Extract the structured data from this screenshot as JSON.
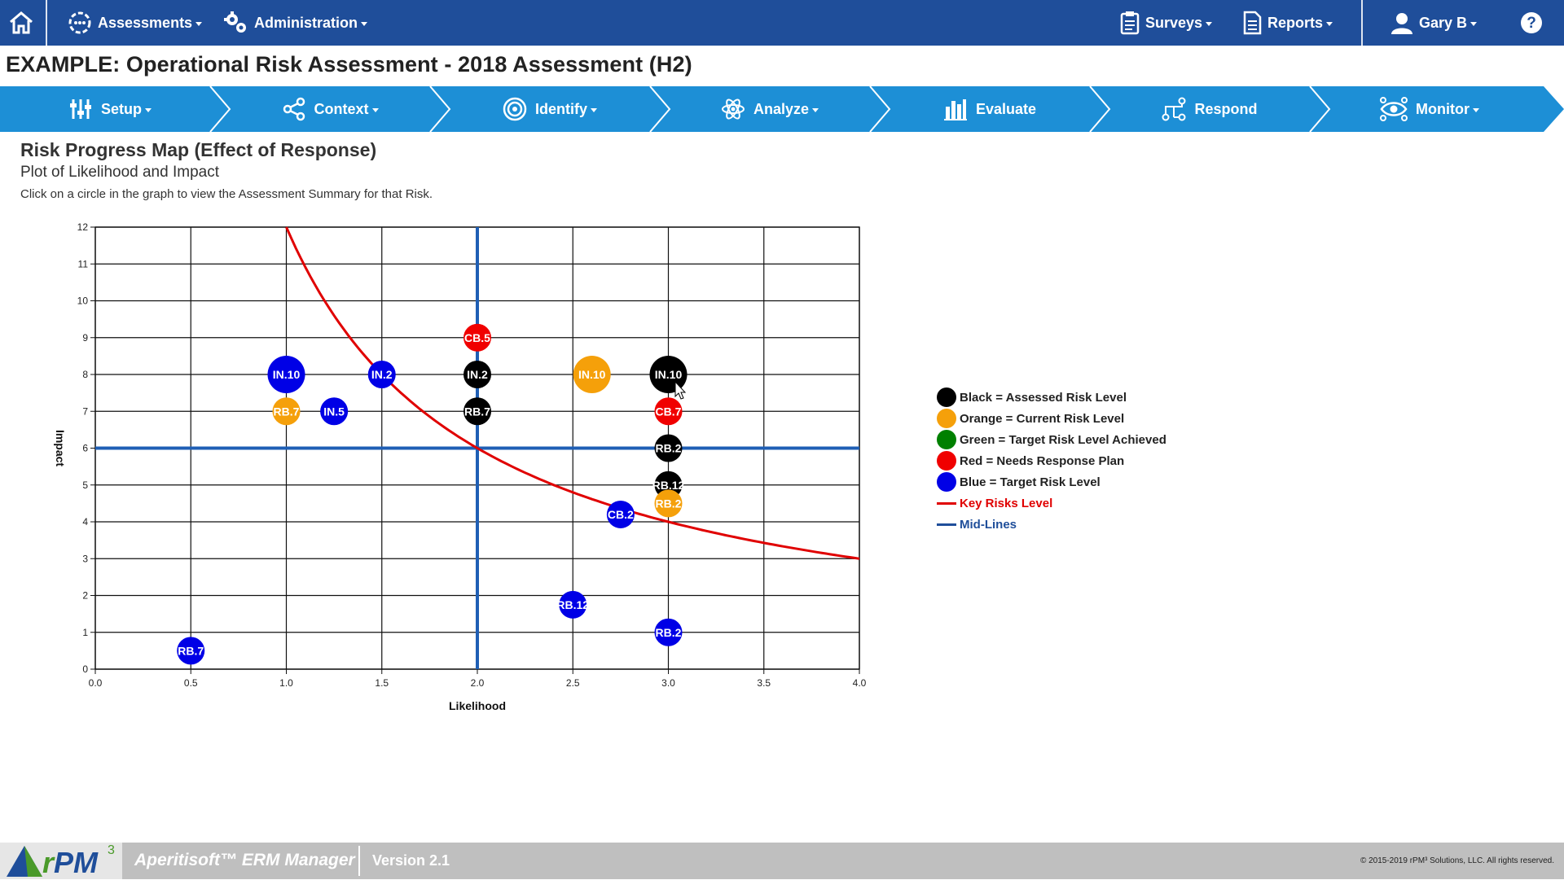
{
  "topnav": {
    "assessments": "Assessments",
    "administration": "Administration",
    "surveys": "Surveys",
    "reports": "Reports",
    "user": "Gary B"
  },
  "page_title": "EXAMPLE: Operational Risk Assessment - 2018 Assessment (H2)",
  "steps": [
    {
      "label": "Setup",
      "icon": "sliders-icon",
      "dropdown": true
    },
    {
      "label": "Context",
      "icon": "share-icon",
      "dropdown": true
    },
    {
      "label": "Identify",
      "icon": "target-icon",
      "dropdown": true
    },
    {
      "label": "Analyze",
      "icon": "atom-icon",
      "dropdown": true
    },
    {
      "label": "Evaluate",
      "icon": "bar-chart-icon",
      "dropdown": false
    },
    {
      "label": "Respond",
      "icon": "flow-icon",
      "dropdown": false
    },
    {
      "label": "Monitor",
      "icon": "eye-icon",
      "dropdown": true
    }
  ],
  "heading": {
    "title": "Risk Progress Map (Effect of Response)",
    "subtitle": "Plot of Likelihood and Impact",
    "note": "Click on a circle in the graph to view the Assessment Summary for that Risk."
  },
  "chart_data": {
    "type": "scatter",
    "xlabel": "Likelihood",
    "ylabel": "Impact",
    "xlim": [
      0,
      4
    ],
    "ylim": [
      0,
      12
    ],
    "x_ticks": [
      "0.0",
      "0.5",
      "1.0",
      "1.5",
      "2.0",
      "2.5",
      "3.0",
      "3.5",
      "4.0"
    ],
    "y_ticks": [
      "0",
      "1",
      "2",
      "3",
      "4",
      "5",
      "6",
      "7",
      "8",
      "9",
      "10",
      "11",
      "12"
    ],
    "grid": true,
    "mid_lines": {
      "x": 2,
      "y": 6,
      "color": "#1f5fb5"
    },
    "key_risk_curve": {
      "product": 12,
      "color": "#e00000"
    },
    "colors": {
      "black": "#000000",
      "orange": "#f5a00a",
      "green": "#008000",
      "red": "#f00000",
      "blue": "#0000e6"
    },
    "points": [
      {
        "label": "IN.10",
        "x": 1.0,
        "y": 8,
        "color": "blue",
        "size": "large"
      },
      {
        "label": "RB.7",
        "x": 1.0,
        "y": 7,
        "color": "orange",
        "size": "small"
      },
      {
        "label": "IN.5",
        "x": 1.25,
        "y": 7,
        "color": "blue",
        "size": "small"
      },
      {
        "label": "IN.2",
        "x": 1.5,
        "y": 8,
        "color": "blue",
        "size": "small"
      },
      {
        "label": "CB.5",
        "x": 2.0,
        "y": 9,
        "color": "red",
        "size": "small"
      },
      {
        "label": "IN.2",
        "x": 2.0,
        "y": 8,
        "color": "black",
        "size": "small"
      },
      {
        "label": "RB.7",
        "x": 2.0,
        "y": 7,
        "color": "black",
        "size": "small"
      },
      {
        "label": "IN.10",
        "x": 2.6,
        "y": 8,
        "color": "orange",
        "size": "large"
      },
      {
        "label": "IN.10",
        "x": 3.0,
        "y": 8,
        "color": "black",
        "size": "large"
      },
      {
        "label": "CB.7",
        "x": 3.0,
        "y": 7,
        "color": "red",
        "size": "small"
      },
      {
        "label": "RB.2",
        "x": 3.0,
        "y": 6,
        "color": "black",
        "size": "small"
      },
      {
        "label": "RB.12",
        "x": 3.0,
        "y": 5,
        "color": "black",
        "size": "small"
      },
      {
        "label": "RB.2",
        "x": 3.0,
        "y": 4.5,
        "color": "orange",
        "size": "small"
      },
      {
        "label": "CB.2",
        "x": 2.75,
        "y": 4.2,
        "color": "blue",
        "size": "small"
      },
      {
        "label": "RB.12",
        "x": 2.5,
        "y": 1.75,
        "color": "blue",
        "size": "small"
      },
      {
        "label": "RB.2",
        "x": 3.0,
        "y": 1,
        "color": "blue",
        "size": "small"
      },
      {
        "label": "RB.7",
        "x": 0.5,
        "y": 0.5,
        "color": "blue",
        "size": "small"
      }
    ]
  },
  "legend": [
    {
      "label": "Black = Assessed Risk Level",
      "kind": "dot",
      "color": "#000000",
      "text_color": "#222222"
    },
    {
      "label": "Orange = Current Risk Level",
      "kind": "dot",
      "color": "#f5a00a",
      "text_color": "#222222"
    },
    {
      "label": "Green = Target Risk Level Achieved",
      "kind": "dot",
      "color": "#008000",
      "text_color": "#222222"
    },
    {
      "label": "Red = Needs Response Plan",
      "kind": "dot",
      "color": "#f00000",
      "text_color": "#222222"
    },
    {
      "label": "Blue = Target Risk Level",
      "kind": "dot",
      "color": "#0000e6",
      "text_color": "#222222"
    },
    {
      "label": "Key Risks Level",
      "kind": "line",
      "color": "#e00000",
      "text_color": "#e00000"
    },
    {
      "label": "Mid-Lines",
      "kind": "line",
      "color": "#1f4e9a",
      "text_color": "#1f4e9a"
    }
  ],
  "footer": {
    "logo_r": "r",
    "logo_pm": "PM",
    "logo_sup": "3",
    "product": "Aperitisoft™ ERM Manager",
    "version": "Version 2.1",
    "copyright": "© 2015-2019 rPM³ Solutions, LLC. All rights reserved."
  }
}
